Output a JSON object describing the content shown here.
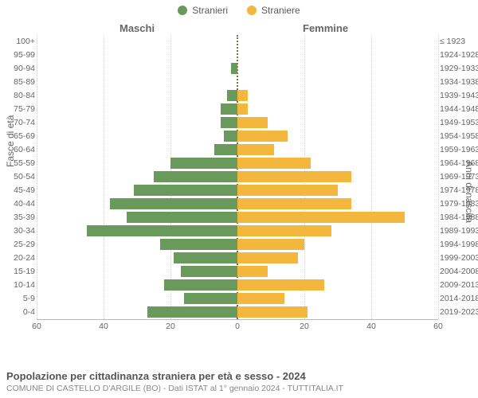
{
  "legend": {
    "male": {
      "label": "Stranieri",
      "color": "#6a9a5b"
    },
    "female": {
      "label": "Straniere",
      "color": "#f3b73e"
    }
  },
  "headers": {
    "male": "Maschi",
    "female": "Femmine"
  },
  "axis": {
    "left_label": "Fasce di età",
    "right_label": "Anni di nascita",
    "xmax": 60,
    "ticks_left": [
      60,
      40,
      20,
      0
    ],
    "ticks_right": [
      0,
      20,
      40,
      60
    ]
  },
  "colors": {
    "grid": "#d0d0d0",
    "center_line": "#80704a",
    "text": "#666666"
  },
  "chart": {
    "type": "population-pyramid",
    "rows": [
      {
        "age": "100+",
        "birth": "≤ 1923",
        "m": 0,
        "f": 0
      },
      {
        "age": "95-99",
        "birth": "1924-1928",
        "m": 0,
        "f": 0
      },
      {
        "age": "90-94",
        "birth": "1929-1933",
        "m": 2,
        "f": 0
      },
      {
        "age": "85-89",
        "birth": "1934-1938",
        "m": 0,
        "f": 0
      },
      {
        "age": "80-84",
        "birth": "1939-1943",
        "m": 3,
        "f": 3
      },
      {
        "age": "75-79",
        "birth": "1944-1948",
        "m": 5,
        "f": 3
      },
      {
        "age": "70-74",
        "birth": "1949-1953",
        "m": 5,
        "f": 9
      },
      {
        "age": "65-69",
        "birth": "1954-1958",
        "m": 4,
        "f": 15
      },
      {
        "age": "60-64",
        "birth": "1959-1963",
        "m": 7,
        "f": 11
      },
      {
        "age": "55-59",
        "birth": "1964-1968",
        "m": 20,
        "f": 22
      },
      {
        "age": "50-54",
        "birth": "1969-1973",
        "m": 25,
        "f": 34
      },
      {
        "age": "45-49",
        "birth": "1974-1978",
        "m": 31,
        "f": 30
      },
      {
        "age": "40-44",
        "birth": "1979-1983",
        "m": 38,
        "f": 34
      },
      {
        "age": "35-39",
        "birth": "1984-1988",
        "m": 33,
        "f": 50
      },
      {
        "age": "30-34",
        "birth": "1989-1993",
        "m": 45,
        "f": 28
      },
      {
        "age": "25-29",
        "birth": "1994-1998",
        "m": 23,
        "f": 20
      },
      {
        "age": "20-24",
        "birth": "1999-2003",
        "m": 19,
        "f": 18
      },
      {
        "age": "15-19",
        "birth": "2004-2008",
        "m": 17,
        "f": 9
      },
      {
        "age": "10-14",
        "birth": "2009-2013",
        "m": 22,
        "f": 26
      },
      {
        "age": "5-9",
        "birth": "2014-2018",
        "m": 16,
        "f": 14
      },
      {
        "age": "0-4",
        "birth": "2019-2023",
        "m": 27,
        "f": 21
      }
    ]
  },
  "footer": {
    "title": "Popolazione per cittadinanza straniera per età e sesso - 2024",
    "subtitle": "COMUNE DI CASTELLO D'ARGILE (BO) - Dati ISTAT al 1° gennaio 2024 - TUTTITALIA.IT"
  }
}
